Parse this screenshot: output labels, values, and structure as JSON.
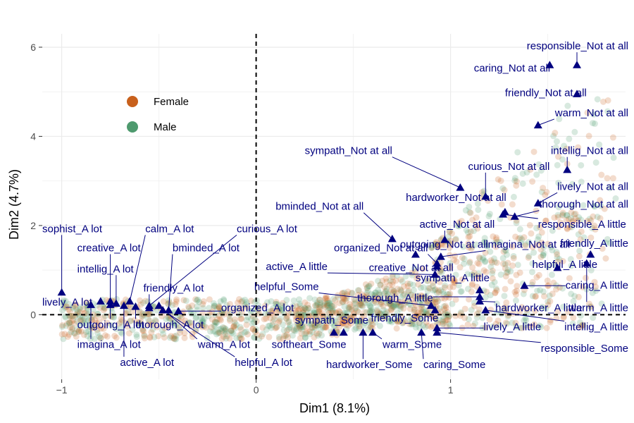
{
  "chart_data": {
    "type": "scatter",
    "xlabel": "Dim1 (8.1%)",
    "ylabel": "Dim2 (4.7%)",
    "xlim": [
      -1.1,
      1.9
    ],
    "ylim": [
      -1.45,
      6.3
    ],
    "x_ticks": [
      -1,
      0,
      1
    ],
    "y_ticks": [
      0,
      2,
      4,
      6
    ],
    "x_tick_labels": [
      "−1",
      "0",
      "1"
    ],
    "y_tick_labels": [
      "0",
      "2",
      "4",
      "6"
    ],
    "grid": true,
    "reference_lines": {
      "x": 0,
      "y": 0,
      "style": "dashed"
    },
    "legend": {
      "position": "top-left",
      "entries": [
        {
          "name": "Female",
          "color": "#c8601c"
        },
        {
          "name": "Male",
          "color": "#4e9a6e"
        }
      ]
    },
    "category_color": "#00007f",
    "categories": [
      {
        "label": "responsible_Not at all",
        "x": 1.65,
        "y": 5.6,
        "lx": 1.55,
        "ly": 5.95
      },
      {
        "label": "caring_Not at all",
        "x": 1.51,
        "y": 5.6,
        "lx": 1.12,
        "ly": 5.45
      },
      {
        "label": "friendly_Not at all",
        "x": 1.65,
        "y": 4.95,
        "lx": 1.28,
        "ly": 4.9
      },
      {
        "label": "warm_Not at all",
        "x": 1.45,
        "y": 4.25,
        "lx": 1.64,
        "ly": 4.45
      },
      {
        "label": "intellig_Not at all",
        "x": 1.6,
        "y": 3.25,
        "lx": 1.63,
        "ly": 3.6
      },
      {
        "label": "sympath_Not at all",
        "x": 1.05,
        "y": 2.85,
        "lx": 0.25,
        "ly": 3.6
      },
      {
        "label": "curious_Not at all",
        "x": 1.18,
        "y": 2.65,
        "lx": 1.09,
        "ly": 3.25
      },
      {
        "label": "lively_Not at all",
        "x": 1.45,
        "y": 2.5,
        "lx": 1.64,
        "ly": 2.8
      },
      {
        "label": "hardworker_Not at all",
        "x": 1.28,
        "y": 2.3,
        "lx": 0.77,
        "ly": 2.55
      },
      {
        "label": "thorough_Not at all",
        "x": 1.33,
        "y": 2.2,
        "lx": 1.57,
        "ly": 2.4
      },
      {
        "label": "bminded_Not at all",
        "x": 0.7,
        "y": 1.7,
        "lx": 0.1,
        "ly": 2.35
      },
      {
        "label": "active_Not at all",
        "x": 0.97,
        "y": 1.68,
        "lx": 0.84,
        "ly": 1.95
      },
      {
        "label": "responsible_A little",
        "x": 1.27,
        "y": 2.25,
        "lx": 1.45,
        "ly": 1.95
      },
      {
        "label": "outgoing_Not at all",
        "x": 0.82,
        "y": 1.35,
        "lx": 0.74,
        "ly": 1.5
      },
      {
        "label": "imagina_Not at all",
        "x": 0.95,
        "y": 1.3,
        "lx": 1.18,
        "ly": 1.5
      },
      {
        "label": "friendly_A little",
        "x": 1.72,
        "y": 1.35,
        "lx": 1.75,
        "ly": 1.52
      },
      {
        "label": "organized_Not at all",
        "x": 0.93,
        "y": 1.15,
        "lx": 0.4,
        "ly": 1.42
      },
      {
        "label": "creative_Not at all",
        "x": 0.93,
        "y": 1.08,
        "lx": 0.58,
        "ly": 0.98
      },
      {
        "label": "active_A little",
        "x": 0.92,
        "y": 0.9,
        "lx": 0.05,
        "ly": 1.0
      },
      {
        "label": "helpful_A little",
        "x": 1.55,
        "y": 1.05,
        "lx": 1.42,
        "ly": 1.05
      },
      {
        "label": "sympath_A little",
        "x": 1.15,
        "y": 0.55,
        "lx": 0.82,
        "ly": 0.75
      },
      {
        "label": "caring_A little",
        "x": 1.38,
        "y": 0.65,
        "lx": 1.66,
        "ly": 0.58
      },
      {
        "label": "helpful_Some",
        "x": 0.9,
        "y": 0.2,
        "lx": -0.01,
        "ly": 0.55
      },
      {
        "label": "thorough_A little",
        "x": 1.15,
        "y": 0.4,
        "lx": 0.52,
        "ly": 0.3
      },
      {
        "label": "hardworker_A little",
        "x": 1.15,
        "y": 0.3,
        "lx": 1.23,
        "ly": 0.08
      },
      {
        "label": "warm_A little",
        "x": 1.7,
        "y": 1.15,
        "lx": 1.7,
        "ly": 0.08
      },
      {
        "label": "friendly_Some",
        "x": 0.92,
        "y": 0.1,
        "lx": 0.59,
        "ly": -0.15
      },
      {
        "label": "sympath_Some",
        "x": 0.45,
        "y": -0.4,
        "lx": 0.2,
        "ly": -0.2
      },
      {
        "label": "lively_A little",
        "x": 0.93,
        "y": -0.3,
        "lx": 1.17,
        "ly": -0.35
      },
      {
        "label": "intellig_A little",
        "x": 1.18,
        "y": 0.1,
        "lx": 1.78,
        "ly": -0.35
      },
      {
        "label": "responsible_Some",
        "x": 0.93,
        "y": -0.4,
        "lx": 1.6,
        "ly": -0.83
      },
      {
        "label": "softheart_Some",
        "x": 0.4,
        "y": -0.4,
        "lx": 0.08,
        "ly": -0.75
      },
      {
        "label": "warm_Some",
        "x": 0.6,
        "y": -0.4,
        "lx": 0.65,
        "ly": -0.75
      },
      {
        "label": "hardworker_Some",
        "x": 0.55,
        "y": -0.4,
        "lx": 0.36,
        "ly": -1.2
      },
      {
        "label": "caring_Some",
        "x": 0.85,
        "y": -0.4,
        "lx": 0.86,
        "ly": -1.2
      },
      {
        "label": "sophist_A lot",
        "x": -1.0,
        "y": 0.5,
        "lx": -1.1,
        "ly": 1.85
      },
      {
        "label": "calm_A lot",
        "x": -0.65,
        "y": 0.3,
        "lx": -0.57,
        "ly": 1.85
      },
      {
        "label": "curious_A lot",
        "x": -0.55,
        "y": 0.2,
        "lx": -0.1,
        "ly": 1.85
      },
      {
        "label": "creative_A lot",
        "x": -0.75,
        "y": 0.3,
        "lx": -0.92,
        "ly": 1.42
      },
      {
        "label": "bminded_A lot",
        "x": -0.45,
        "y": 0.1,
        "lx": -0.43,
        "ly": 1.42
      },
      {
        "label": "intellig_A lot",
        "x": -0.72,
        "y": 0.25,
        "lx": -0.92,
        "ly": 0.95
      },
      {
        "label": "friendly_A lot",
        "x": -0.55,
        "y": 0.15,
        "lx": -0.58,
        "ly": 0.52
      },
      {
        "label": "lively_A lot",
        "x": -0.8,
        "y": 0.3,
        "lx": -1.1,
        "ly": 0.2
      },
      {
        "label": "organized_A lot",
        "x": -0.4,
        "y": 0.08,
        "lx": -0.18,
        "ly": 0.08
      },
      {
        "label": "outgoing_A lot",
        "x": -0.75,
        "y": 0.22,
        "lx": -0.92,
        "ly": -0.3
      },
      {
        "label": "thorough_A lot",
        "x": -0.62,
        "y": 0.18,
        "lx": -0.62,
        "ly": -0.3
      },
      {
        "label": "imagina_A lot",
        "x": -0.85,
        "y": 0.22,
        "lx": -0.92,
        "ly": -0.75
      },
      {
        "label": "warm_A lot",
        "x": -0.5,
        "y": 0.2,
        "lx": -0.3,
        "ly": -0.75
      },
      {
        "label": "active_A lot",
        "x": -0.68,
        "y": 0.2,
        "lx": -0.7,
        "ly": -1.15
      },
      {
        "label": "helpful_A lot",
        "x": -0.48,
        "y": 0.1,
        "lx": -0.11,
        "ly": -1.15
      }
    ]
  }
}
